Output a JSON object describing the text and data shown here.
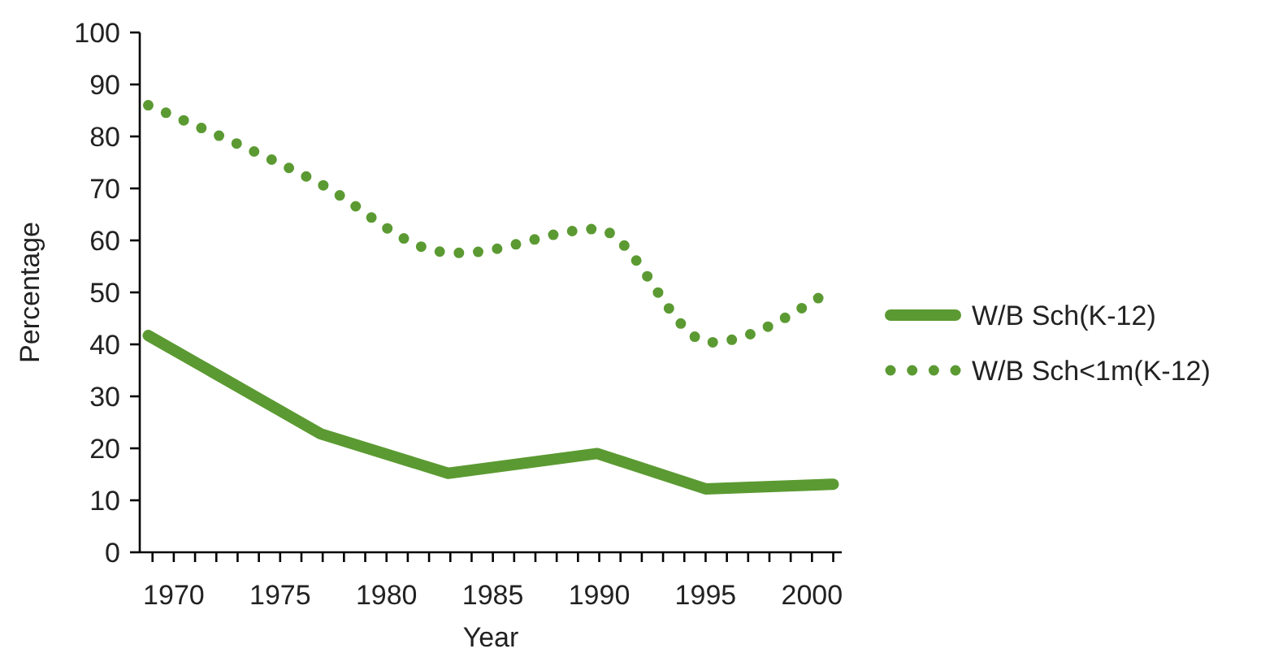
{
  "chart_data": {
    "type": "line",
    "xlabel": "Year",
    "ylabel": "Percentage",
    "xlim": [
      1968.4,
      2001.4
    ],
    "xticks": [
      {
        "value": 1969,
        "label": null
      },
      1970,
      {
        "value": 1971,
        "label": null
      },
      {
        "value": 1972,
        "label": null
      },
      {
        "value": 1973,
        "label": null
      },
      {
        "value": 1974,
        "label": null
      },
      1975,
      {
        "value": 1976,
        "label": null
      },
      {
        "value": 1977,
        "label": null
      },
      {
        "value": 1978,
        "label": null
      },
      {
        "value": 1979,
        "label": null
      },
      1980,
      {
        "value": 1981,
        "label": null
      },
      {
        "value": 1982,
        "label": null
      },
      {
        "value": 1983,
        "label": null
      },
      {
        "value": 1984,
        "label": null
      },
      1985,
      {
        "value": 1986,
        "label": null
      },
      {
        "value": 1987,
        "label": null
      },
      {
        "value": 1988,
        "label": null
      },
      {
        "value": 1989,
        "label": null
      },
      1990,
      {
        "value": 1991,
        "label": null
      },
      {
        "value": 1992,
        "label": null
      },
      {
        "value": 1993,
        "label": null
      },
      {
        "value": 1994,
        "label": null
      },
      1995,
      {
        "value": 1996,
        "label": null
      },
      {
        "value": 1997,
        "label": null
      },
      {
        "value": 1998,
        "label": null
      },
      {
        "value": 1999,
        "label": null
      },
      2000,
      {
        "value": 2001,
        "label": null
      }
    ],
    "ylim": [
      0,
      100
    ],
    "yticks": [
      0,
      10,
      20,
      30,
      40,
      50,
      60,
      70,
      80,
      90,
      100
    ],
    "grid": false,
    "legend": "right",
    "series": [
      {
        "name": "W/B Sch(K-12)",
        "color": "#5b9a32",
        "line_style": "solid",
        "x": [
          1968.8,
          1976.9,
          1982.9,
          1989.9,
          1995.0,
          2001.0
        ],
        "values": [
          41.7,
          22.8,
          15.2,
          19,
          12.2,
          13.1
        ]
      },
      {
        "name": "W/B Sch<1m(K-12)",
        "color": "#5b9a32",
        "line_style": "dotted",
        "x": [
          1968.8,
          1976.8,
          1982.6,
          1983.5,
          1989.9,
          1995.2,
          2000.3
        ],
        "values": [
          86,
          71.1,
          57.8,
          57.6,
          62.2,
          40.4,
          48.9
        ]
      }
    ]
  }
}
